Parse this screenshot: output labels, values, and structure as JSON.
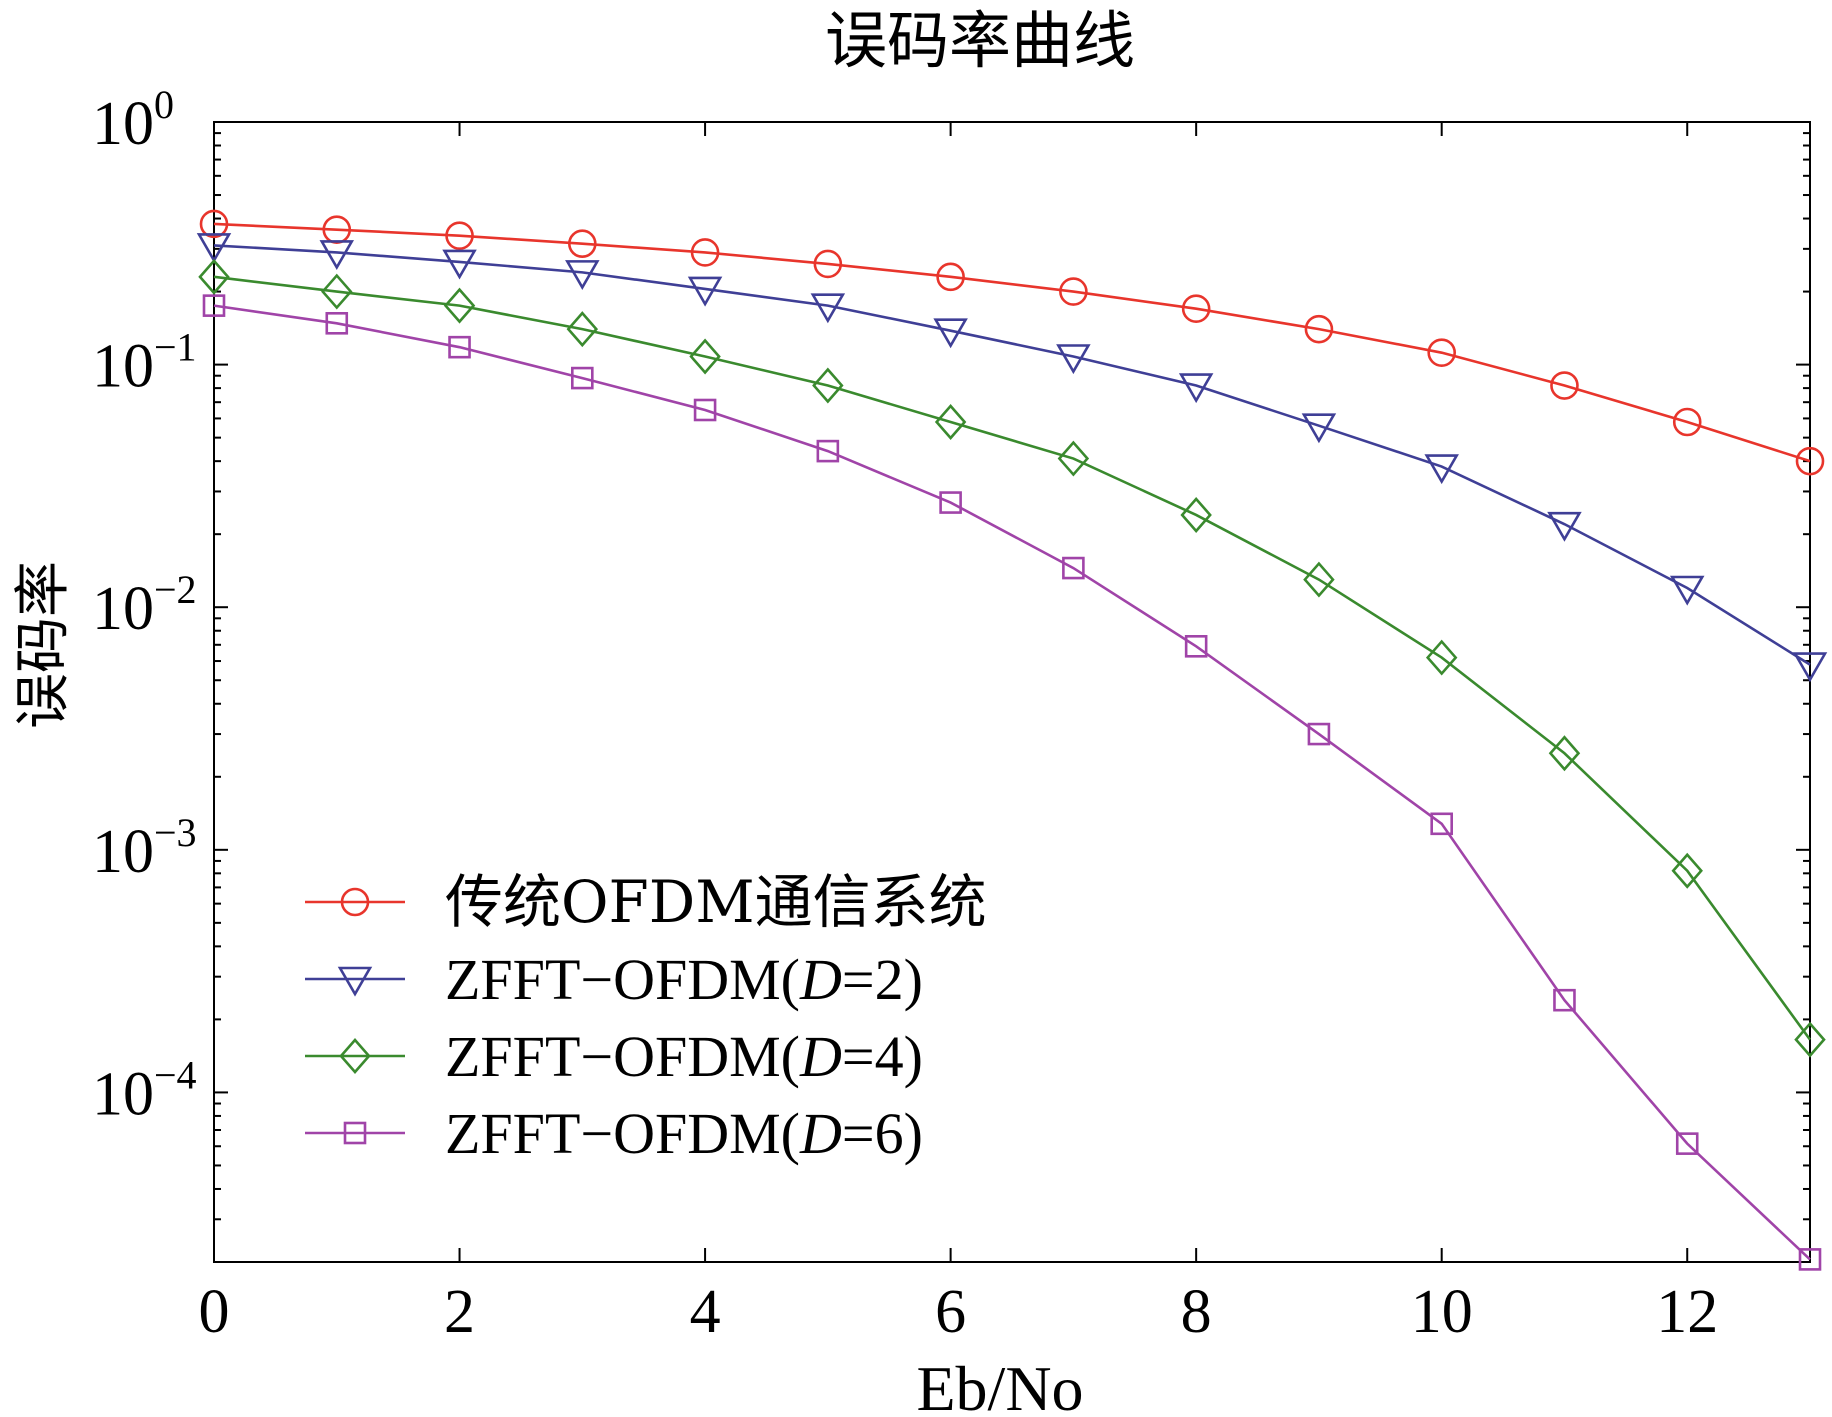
{
  "chart_data": {
    "type": "line",
    "title": "误码率曲线",
    "xlabel": "Eb/No",
    "ylabel": "误码率",
    "xlim": [
      0,
      13
    ],
    "ylim": [
      2e-05,
      1
    ],
    "yscale": "log",
    "xticks": [
      0,
      2,
      4,
      6,
      8,
      10,
      12
    ],
    "xtick_labels": [
      "0",
      "2",
      "4",
      "6",
      "8",
      "10",
      "12"
    ],
    "yticks": [
      1,
      0.1,
      0.01,
      0.001,
      0.0001
    ],
    "ytick_labels": [
      {
        "base": "10",
        "exp": "0"
      },
      {
        "base": "10",
        "exp": "−1"
      },
      {
        "base": "10",
        "exp": "−2"
      },
      {
        "base": "10",
        "exp": "−3"
      },
      {
        "base": "10",
        "exp": "−4"
      }
    ],
    "grid": false,
    "legend_position": "lower-left",
    "x": [
      0,
      1,
      2,
      3,
      4,
      5,
      6,
      7,
      8,
      9,
      10,
      11,
      12,
      13
    ],
    "series": [
      {
        "name": "传统OFDM通信系统",
        "color": "#e8352c",
        "marker": "circle",
        "values": [
          0.38,
          0.36,
          0.34,
          0.315,
          0.29,
          0.26,
          0.23,
          0.2,
          0.17,
          0.14,
          0.112,
          0.082,
          0.058,
          0.04
        ]
      },
      {
        "name": "ZFFT-OFDM(D=2)",
        "name_parts": [
          "ZFFT−OFDM(",
          "D",
          "=2)"
        ],
        "color": "#3f3f96",
        "marker": "triangle-down",
        "values": [
          0.31,
          0.29,
          0.265,
          0.24,
          0.205,
          0.175,
          0.138,
          0.108,
          0.082,
          0.056,
          0.038,
          0.022,
          0.012,
          0.0058
        ]
      },
      {
        "name": "ZFFT-OFDM(D=4)",
        "name_parts": [
          "ZFFT−OFDM(",
          "D",
          "=4)"
        ],
        "color": "#3a8a2e",
        "marker": "diamond",
        "values": [
          0.23,
          0.2,
          0.175,
          0.14,
          0.108,
          0.082,
          0.058,
          0.041,
          0.024,
          0.013,
          0.0062,
          0.0025,
          0.00082,
          0.000165
        ]
      },
      {
        "name": "ZFFT-OFDM(D=6)",
        "name_parts": [
          "ZFFT−OFDM(",
          "D",
          "=6)"
        ],
        "color": "#a044a8",
        "marker": "square",
        "values": [
          0.175,
          0.148,
          0.118,
          0.088,
          0.065,
          0.044,
          0.027,
          0.0145,
          0.0069,
          0.003,
          0.00128,
          0.00024,
          6.15e-05,
          2.05e-05
        ]
      }
    ]
  }
}
